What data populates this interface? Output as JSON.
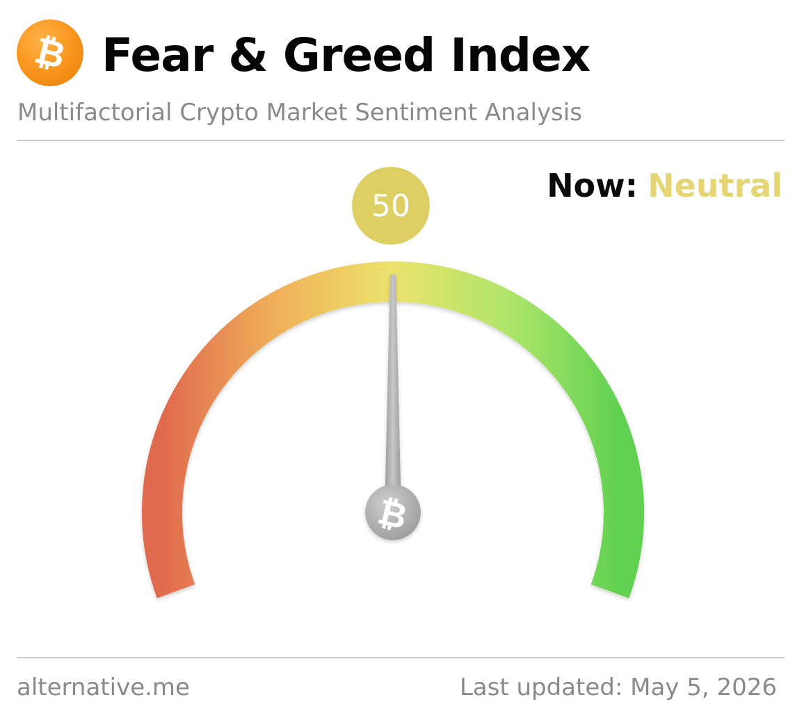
{
  "header": {
    "title": "Fear & Greed Index",
    "subtitle": "Multifactorial Crypto Market Sentiment Analysis",
    "logo_icon": "bitcoin-logo-icon"
  },
  "status": {
    "now_label": "Now:",
    "now_value": "Neutral",
    "value_text": "50"
  },
  "gauge": {
    "value": 50,
    "min": 0,
    "max": 100,
    "pivot_icon": "bitcoin-icon",
    "colors": {
      "fear": "#e06a4e",
      "mid_low": "#f0b15a",
      "neutral": "#ece36c",
      "mid_high": "#aee56a",
      "greed": "#5ed04f",
      "value_bubble": "#ddcf63",
      "now_value": "#e6d574",
      "needle": "#b3b3b3"
    }
  },
  "footer": {
    "source": "alternative.me",
    "updated": "Last updated: May 5, 2026"
  }
}
